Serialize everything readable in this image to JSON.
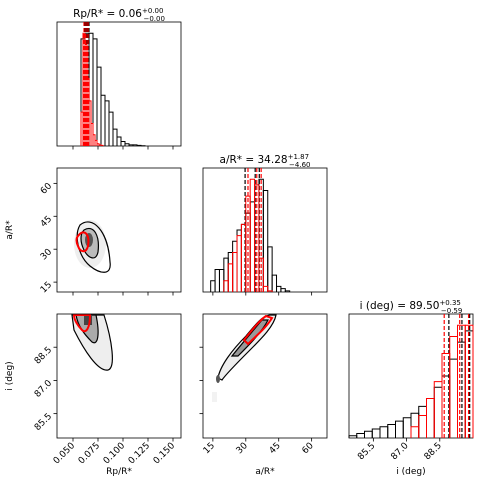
{
  "chart_data": {
    "type": "corner",
    "parameters": [
      {
        "label": "Rp/R*",
        "title": "Rp/R* = 0.06",
        "upper": "+0.00",
        "lower": "−0.00",
        "lim": [
          0.034,
          0.158
        ],
        "ticks": [
          {
            "value": 0.05,
            "label": "0.050"
          },
          {
            "value": 0.075,
            "label": "0.075"
          },
          {
            "value": 0.1,
            "label": "0.100"
          },
          {
            "value": 0.125,
            "label": "0.125"
          },
          {
            "value": 0.15,
            "label": "0.150"
          }
        ]
      },
      {
        "label": "a/R*",
        "title": "a/R* = 34.28",
        "upper": "+1.87",
        "lower": "−4.60",
        "lim": [
          10.5,
          67
        ],
        "ticks": [
          15,
          30,
          45,
          60
        ]
      },
      {
        "label": "i (deg)",
        "title": "i (deg) = 89.50",
        "upper": "+0.35",
        "lower": "−0.59",
        "lim": [
          84.4,
          90
        ],
        "ticks": [
          85.5,
          {
            "value": 87.0,
            "label": "87.0"
          },
          88.5
        ]
      }
    ],
    "diagonal": [
      {
        "ylim": [
          0,
          1.1
        ],
        "series": [
          {
            "color": "#000000",
            "bins": [
              0.058,
              0.062,
              0.066,
              0.07,
              0.074,
              0.078,
              0.082,
              0.086,
              0.09,
              0.094,
              0.098,
              0.102,
              0.106,
              0.11,
              0.114,
              0.118,
              0.122
            ],
            "values": [
              0.95,
              1.0,
              1.0,
              0.95,
              0.7,
              0.45,
              0.4,
              0.3,
              0.15,
              0.08,
              0.04,
              0.02,
              0.01,
              0.01,
              0.005,
              0.002
            ],
            "quantiles": [
              0.062,
              0.064,
              0.066
            ]
          },
          {
            "color": "#ff0000",
            "bins": [
              0.058,
              0.06,
              0.062,
              0.064,
              0.066,
              0.068,
              0.07,
              0.072,
              0.074,
              0.076,
              0.078,
              0.08
            ],
            "values": [
              0.3,
              1.0,
              0.9,
              0.6,
              0.4,
              0.2,
              0.1,
              0.05,
              0.02,
              0.01,
              0.005
            ],
            "quantiles": [
              0.061,
              0.063,
              0.065
            ]
          }
        ]
      },
      {
        "ylim": [
          0,
          1.1
        ],
        "series": [
          {
            "color": "#000000",
            "bins": [
              14,
              16,
              18,
              20,
              22,
              24,
              26,
              28,
              30,
              32,
              34,
              36,
              38,
              40,
              42,
              44,
              46,
              48,
              50
            ],
            "values": [
              0.1,
              0.2,
              0.2,
              0.3,
              0.35,
              0.45,
              0.55,
              0.6,
              0.7,
              0.8,
              0.95,
              1.0,
              0.9,
              0.4,
              0.15,
              0.05,
              0.03,
              0.01
            ],
            "quantiles": [
              29.68,
              34.28,
              36.15
            ]
          },
          {
            "color": "#ff0000",
            "bins": [
              20,
              22,
              24,
              26,
              28,
              30,
              32,
              34,
              36,
              38,
              40,
              42
            ],
            "values": [
              0.1,
              0.25,
              0.35,
              0.5,
              0.6,
              0.85,
              1.0,
              0.95,
              0.3,
              0.05,
              0.01
            ],
            "quantiles": [
              31,
              35,
              37
            ]
          }
        ]
      },
      {
        "ylim": [
          0,
          1.1
        ],
        "series": [
          {
            "color": "#000000",
            "bins": [
              84.4,
              84.75,
              85.1,
              85.45,
              85.8,
              86.15,
              86.5,
              86.85,
              87.2,
              87.55,
              87.9,
              88.25,
              88.6,
              88.95,
              89.3,
              89.65,
              90
            ],
            "values": [
              0.02,
              0.04,
              0.06,
              0.08,
              0.1,
              0.12,
              0.15,
              0.18,
              0.22,
              0.28,
              0.35,
              0.45,
              0.55,
              0.7,
              0.85,
              0.95
            ],
            "quantiles": [
              88.91,
              89.5,
              89.85
            ]
          },
          {
            "color": "#ff0000",
            "bins": [
              87.2,
              87.55,
              87.9,
              88.25,
              88.6,
              88.95,
              89.3,
              89.65,
              90
            ],
            "values": [
              0.1,
              0.2,
              0.35,
              0.5,
              0.75,
              0.9,
              1.0,
              1.0
            ],
            "quantiles": [
              88.7,
              89.4,
              89.8
            ]
          }
        ]
      }
    ]
  }
}
